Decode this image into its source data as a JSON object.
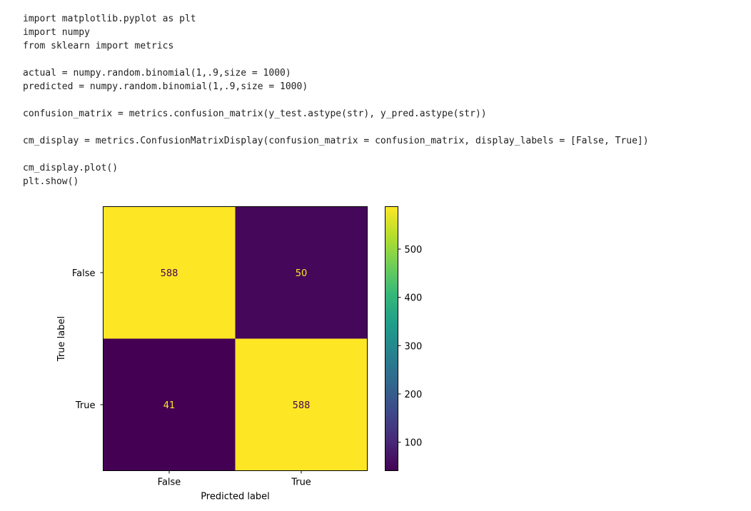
{
  "code_lines": [
    "import matplotlib.pyplot as plt",
    "import numpy",
    "from sklearn import metrics",
    "",
    "actual = numpy.random.binomial(1,.9,size = 1000)",
    "predicted = numpy.random.binomial(1,.9,size = 1000)",
    "",
    "confusion_matrix = metrics.confusion_matrix(y_test.astype(str), y_pred.astype(str))",
    "",
    "cm_display = metrics.ConfusionMatrixDisplay(confusion_matrix = confusion_matrix, display_labels = [False, True])",
    "",
    "cm_display.plot()",
    "plt.show()"
  ],
  "chart_data": {
    "type": "heatmap",
    "title": "",
    "xlabel": "Predicted label",
    "ylabel": "True label",
    "x_categories": [
      "False",
      "True"
    ],
    "y_categories": [
      "False",
      "True"
    ],
    "values": [
      [
        588,
        50
      ],
      [
        41,
        588
      ]
    ],
    "colormap": "viridis",
    "vmin": 41,
    "vmax": 588,
    "colorbar_ticks": [
      100,
      200,
      300,
      400,
      500
    ],
    "legend": "colorbar-right",
    "grid": false,
    "colors": {
      "high": "#fde725",
      "low": "#440154",
      "text_on_low": "#fde725",
      "text_on_high": "#440154"
    }
  }
}
